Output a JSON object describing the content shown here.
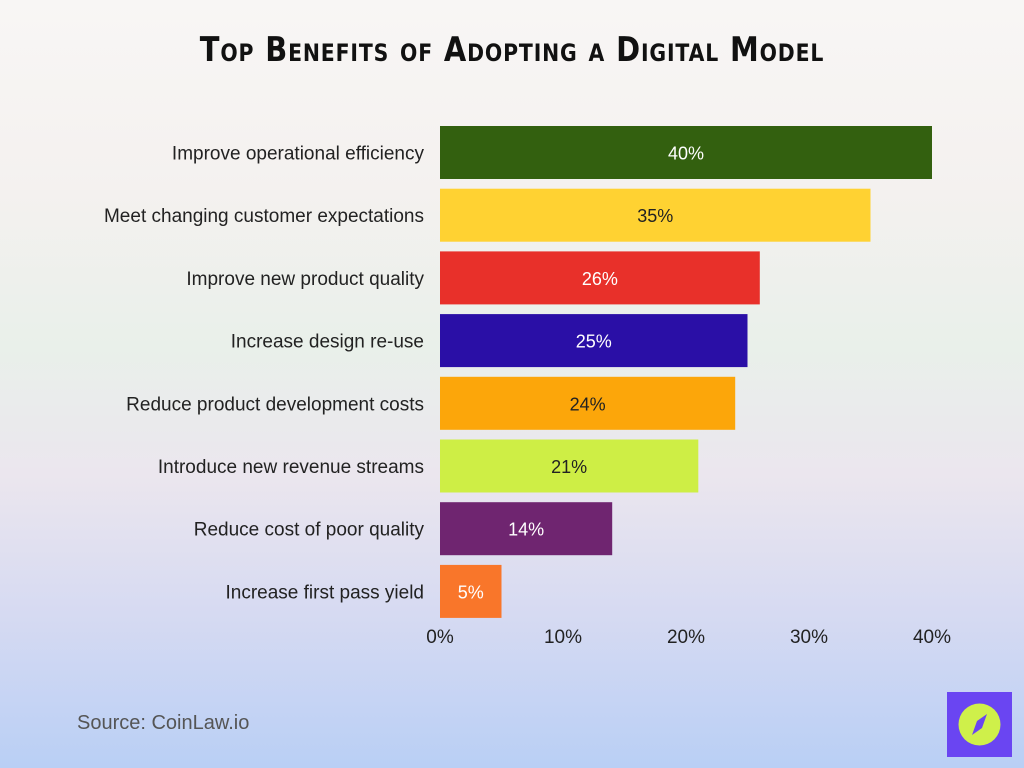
{
  "chart_data": {
    "type": "bar",
    "orientation": "horizontal",
    "title": "Top Benefits of Adopting a Digital Model",
    "categories": [
      "Improve operational efficiency",
      "Meet changing customer expectations",
      "Improve new product quality",
      "Increase design re-use",
      "Reduce product development costs",
      "Introduce new revenue streams",
      "Reduce cost of poor quality",
      "Increase first pass yield"
    ],
    "values": [
      40,
      35,
      26,
      25,
      24,
      21,
      14,
      5
    ],
    "data_labels": [
      "40%",
      "35%",
      "26%",
      "25%",
      "24%",
      "21%",
      "14%",
      "5%"
    ],
    "colors": [
      "#33600f",
      "#ffd232",
      "#e8302a",
      "#2a0fa6",
      "#fca60a",
      "#ceee45",
      "#6f2570",
      "#f9762a"
    ],
    "label_colors": [
      "#ffffff",
      "#222222",
      "#ffffff",
      "#ffffff",
      "#222222",
      "#222222",
      "#ffffff",
      "#ffffff"
    ],
    "xlim": [
      0,
      40
    ],
    "xticks": [
      "0%",
      "10%",
      "20%",
      "30%",
      "40%"
    ],
    "xlabel": "",
    "ylabel": "",
    "grid": false,
    "legend": "none"
  },
  "source": "Source: CoinLaw.io",
  "logo": {
    "icon": "compass-icon",
    "bg": "#6a45f2",
    "fg": "#cff04a"
  }
}
